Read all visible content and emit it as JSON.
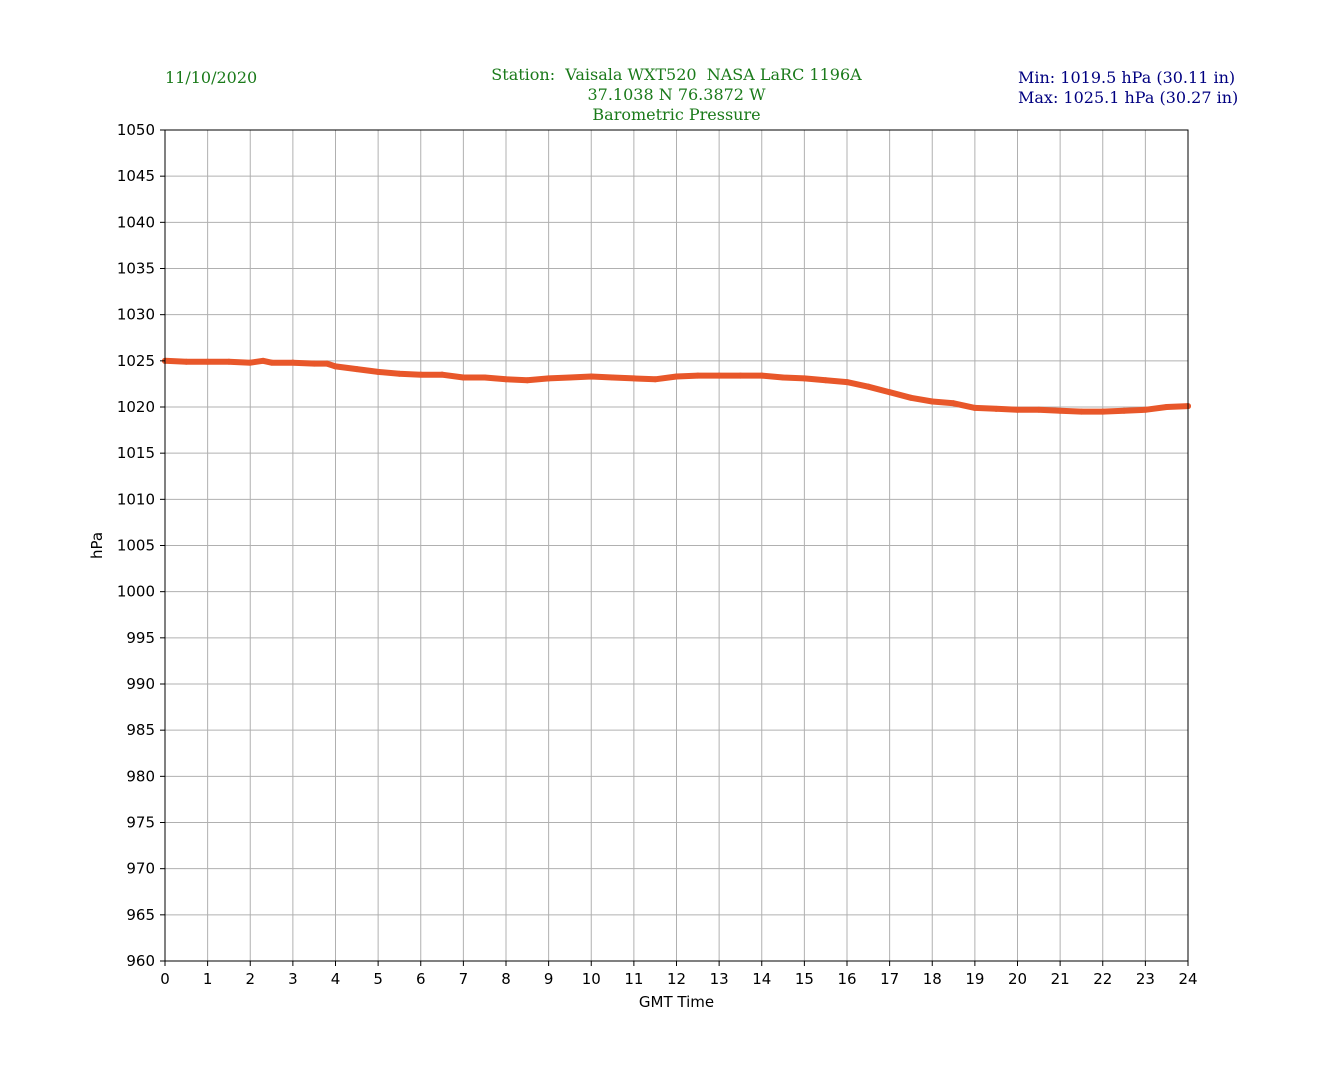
{
  "header": {
    "date": "11/10/2020",
    "station_line": "Station:  Vaisala WXT520  NASA LaRC 1196A",
    "coords_line": "37.1038 N 76.3872 W",
    "title_line": "Barometric Pressure",
    "min_line": "Min: 1019.5 hPa (30.11 in)",
    "max_line": "Max: 1025.1 hPa (30.27 in)"
  },
  "colors": {
    "header_green": "#1a7a1a",
    "header_navy": "#000080",
    "series": "#e8572a",
    "grid": "#b0b0b0"
  },
  "chart_data": {
    "type": "line",
    "xlabel": "GMT Time",
    "ylabel": "hPa",
    "xlim": [
      0,
      24
    ],
    "ylim": [
      960,
      1050
    ],
    "xticks": [
      0,
      1,
      2,
      3,
      4,
      5,
      6,
      7,
      8,
      9,
      10,
      11,
      12,
      13,
      14,
      15,
      16,
      17,
      18,
      19,
      20,
      21,
      22,
      23,
      24
    ],
    "yticks": [
      960,
      965,
      970,
      975,
      980,
      985,
      990,
      995,
      1000,
      1005,
      1010,
      1015,
      1020,
      1025,
      1030,
      1035,
      1040,
      1045,
      1050
    ],
    "grid": true,
    "series": [
      {
        "name": "",
        "x": [
          0,
          0.5,
          1,
          1.5,
          2,
          2.3,
          2.5,
          3,
          3.5,
          3.8,
          4,
          4.5,
          5,
          5.5,
          6,
          6.5,
          7,
          7.5,
          8,
          8.5,
          9,
          9.5,
          10,
          10.5,
          11,
          11.5,
          12,
          12.5,
          13,
          13.5,
          14,
          14.5,
          15,
          15.5,
          16,
          16.5,
          17,
          17.5,
          18,
          18.5,
          19,
          19.5,
          20,
          20.5,
          21,
          21.5,
          22,
          22.5,
          23,
          23.5,
          24
        ],
        "y": [
          1025.0,
          1024.9,
          1024.9,
          1024.9,
          1024.8,
          1025.0,
          1024.8,
          1024.8,
          1024.7,
          1024.7,
          1024.4,
          1024.1,
          1023.8,
          1023.6,
          1023.5,
          1023.5,
          1023.2,
          1023.2,
          1023.0,
          1022.9,
          1023.1,
          1023.2,
          1023.3,
          1023.2,
          1023.1,
          1023.0,
          1023.3,
          1023.4,
          1023.4,
          1023.4,
          1023.4,
          1023.2,
          1023.1,
          1022.9,
          1022.7,
          1022.2,
          1021.6,
          1021.0,
          1020.6,
          1020.4,
          1019.9,
          1019.8,
          1019.7,
          1019.7,
          1019.6,
          1019.5,
          1019.5,
          1019.6,
          1019.7,
          1020.0,
          1020.1
        ]
      }
    ]
  }
}
